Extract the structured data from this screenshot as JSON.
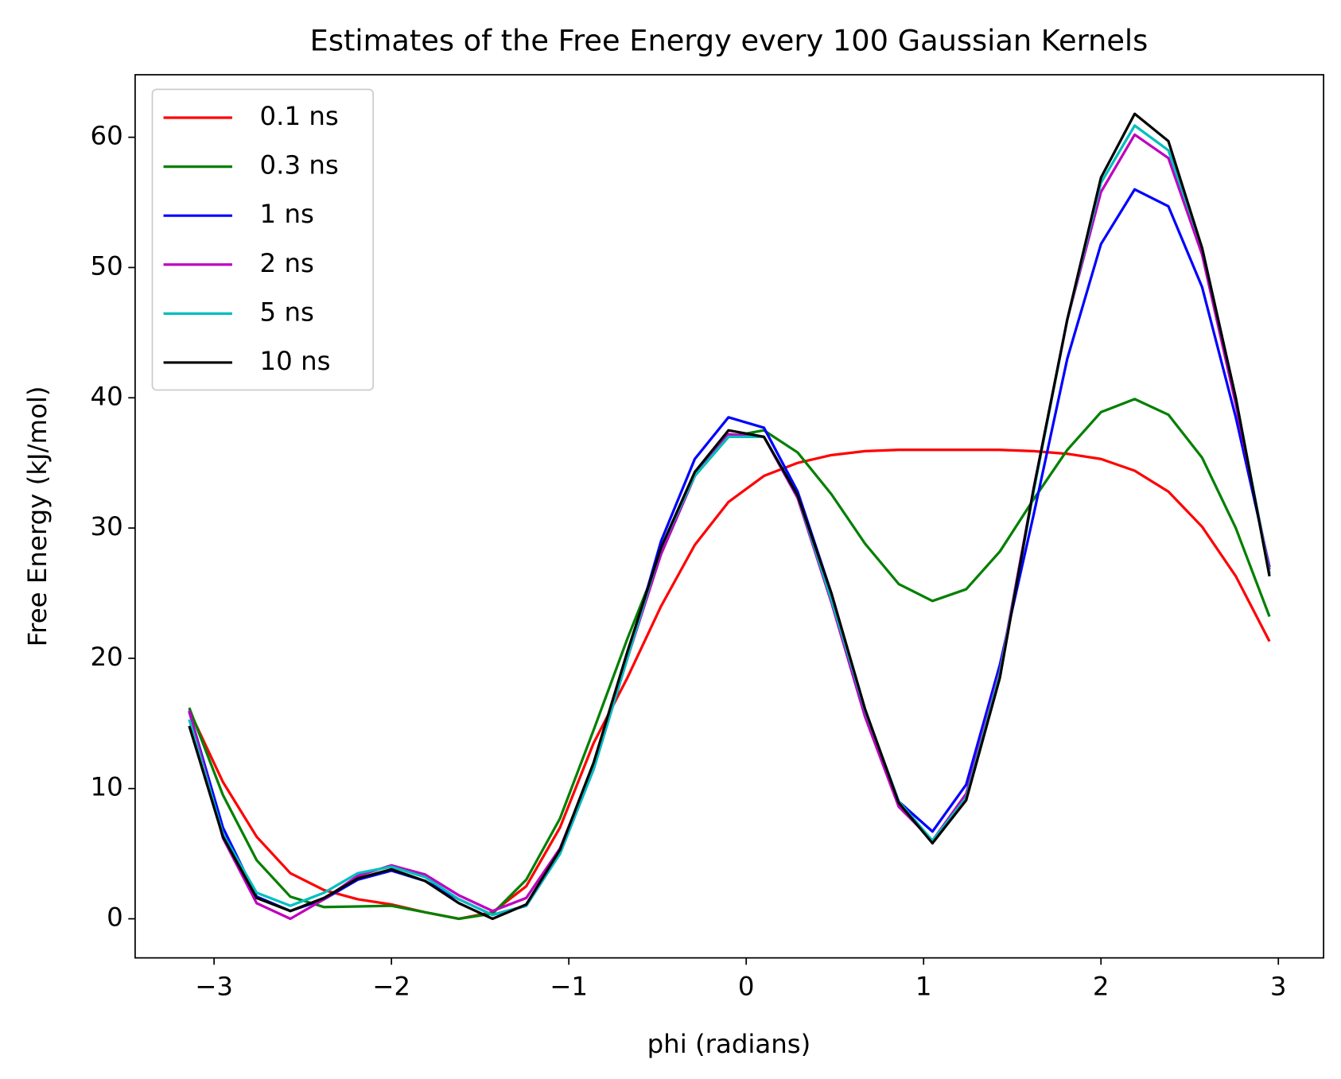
{
  "chart_data": {
    "type": "line",
    "title": "Estimates of the Free Energy every 100 Gaussian Kernels",
    "xlabel": "phi (radians)",
    "ylabel": "Free Energy (kJ/mol)",
    "x": [
      -3.14,
      -2.95,
      -2.76,
      -2.57,
      -2.38,
      -2.19,
      -2.0,
      -1.81,
      -1.62,
      -1.43,
      -1.24,
      -1.05,
      -0.86,
      -0.67,
      -0.48,
      -0.29,
      -0.1,
      0.1,
      0.29,
      0.48,
      0.67,
      0.86,
      1.05,
      1.24,
      1.43,
      1.62,
      1.81,
      2.0,
      2.19,
      2.38,
      2.57,
      2.76,
      2.95
    ],
    "series": [
      {
        "name": "0.1 ns",
        "color": "#ff0000",
        "values": [
          16.0,
          10.5,
          6.3,
          3.5,
          2.2,
          1.5,
          1.1,
          0.5,
          0.0,
          0.5,
          2.5,
          7.0,
          13.5,
          18.5,
          24.0,
          28.7,
          32.0,
          34.0,
          35.0,
          35.6,
          35.9,
          36.0,
          36.0,
          36.0,
          36.0,
          35.9,
          35.7,
          35.3,
          34.4,
          32.8,
          30.1,
          26.3,
          21.3
        ]
      },
      {
        "name": "0.3 ns",
        "color": "#008000",
        "values": [
          16.2,
          9.5,
          4.5,
          1.7,
          0.9,
          0.95,
          1.0,
          0.5,
          0.0,
          0.4,
          3.0,
          7.7,
          14.5,
          21.5,
          28.0,
          34.0,
          37.0,
          37.5,
          35.8,
          32.6,
          28.8,
          25.7,
          24.4,
          25.3,
          28.2,
          32.2,
          36.0,
          38.9,
          39.9,
          38.7,
          35.4,
          30.0,
          23.2
        ]
      },
      {
        "name": "1 ns",
        "color": "#0000ff",
        "values": [
          15.9,
          7.0,
          1.7,
          0.6,
          1.5,
          3.0,
          3.7,
          2.9,
          1.5,
          0.3,
          1.0,
          5.0,
          11.5,
          20.0,
          29.0,
          35.3,
          38.5,
          37.7,
          32.8,
          25.0,
          16.0,
          9.0,
          6.7,
          10.3,
          19.5,
          31.0,
          43.0,
          51.8,
          56.0,
          54.7,
          48.5,
          38.5,
          27.0
        ]
      },
      {
        "name": "2 ns",
        "color": "#bf00bf",
        "values": [
          16.0,
          6.2,
          1.2,
          0.0,
          1.5,
          3.3,
          4.1,
          3.4,
          1.8,
          0.6,
          1.6,
          5.4,
          11.8,
          20.0,
          28.0,
          34.0,
          37.2,
          37.0,
          32.3,
          24.3,
          15.5,
          8.6,
          6.0,
          9.6,
          19.0,
          33.0,
          46.0,
          55.8,
          60.2,
          58.4,
          51.0,
          39.5,
          26.8
        ]
      },
      {
        "name": "5 ns",
        "color": "#00bfbf",
        "values": [
          15.3,
          6.5,
          2.0,
          1.0,
          2.0,
          3.5,
          4.0,
          3.2,
          1.5,
          0.3,
          1.0,
          5.0,
          11.5,
          20.0,
          28.5,
          34.0,
          37.0,
          37.0,
          32.5,
          24.5,
          16.0,
          9.0,
          6.0,
          9.3,
          18.8,
          32.8,
          46.0,
          56.5,
          60.9,
          59.0,
          51.5,
          40.0,
          26.5
        ]
      },
      {
        "name": "10 ns",
        "color": "#000000",
        "values": [
          14.8,
          6.3,
          1.6,
          0.6,
          1.6,
          3.1,
          3.8,
          2.9,
          1.2,
          0.0,
          1.1,
          5.3,
          12.0,
          20.5,
          28.5,
          34.3,
          37.5,
          37.0,
          32.5,
          25.0,
          16.1,
          8.9,
          5.8,
          9.1,
          18.5,
          33.0,
          46.0,
          56.9,
          61.8,
          59.7,
          51.5,
          40.0,
          26.3
        ]
      }
    ],
    "xlim": [
      -3.445,
      3.255
    ],
    "xticks": [
      {
        "value": -3,
        "label": "−3"
      },
      {
        "value": -2,
        "label": "−2"
      },
      {
        "value": -1,
        "label": "−1"
      },
      0,
      1,
      2,
      3
    ],
    "ylim": [
      -3.0,
      64.8
    ],
    "yticks": [
      0,
      10,
      20,
      30,
      40,
      50,
      60
    ],
    "legend": "upper left"
  }
}
